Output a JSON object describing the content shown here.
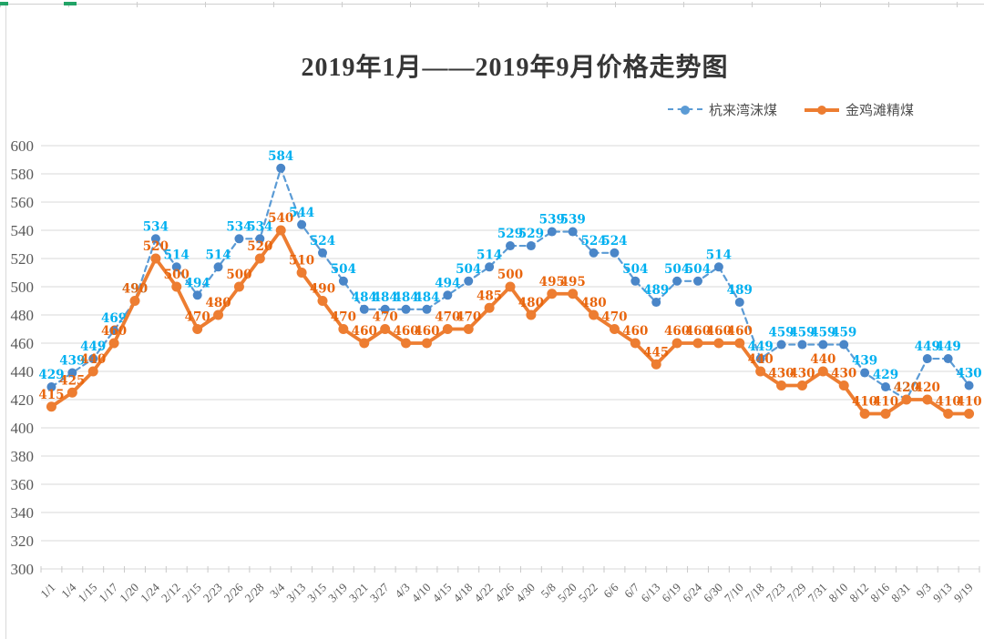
{
  "title": "2019年1月——2019年9月价格走势图",
  "legend": {
    "items": [
      {
        "label": "杭来湾沫煤"
      },
      {
        "label": "金鸡滩精煤"
      }
    ]
  },
  "chart_data": {
    "type": "line",
    "title": "2019年1月——2019年9月价格走势图",
    "categories": [
      "1/1",
      "1/4",
      "1/15",
      "1/17",
      "1/20",
      "1/24",
      "2/12",
      "2/15",
      "2/23",
      "2/26",
      "2/28",
      "3/4",
      "3/13",
      "3/15",
      "3/19",
      "3/21",
      "3/27",
      "4/3",
      "4/10",
      "4/15",
      "4/18",
      "4/22",
      "4/26",
      "4/30",
      "5/8",
      "5/20",
      "5/22",
      "6/6",
      "6/7",
      "6/13",
      "6/19",
      "6/24",
      "6/30",
      "7/10",
      "7/18",
      "7/23",
      "7/29",
      "7/31",
      "8/10",
      "8/12",
      "8/16",
      "8/31",
      "9/3",
      "9/13",
      "9/19"
    ],
    "series": [
      {
        "name": "杭来湾沫煤",
        "style": "dashed",
        "line_color": "#5B9BD5",
        "marker_color": "#4A86C8",
        "label_color": "#00B0F0",
        "values": [
          429,
          439,
          449,
          469,
          490,
          534,
          514,
          494,
          514,
          534,
          534,
          584,
          544,
          524,
          504,
          484,
          484,
          484,
          484,
          494,
          504,
          514,
          529,
          529,
          539,
          539,
          524,
          524,
          504,
          489,
          504,
          504,
          514,
          489,
          449,
          459,
          459,
          459,
          459,
          439,
          429,
          420,
          449,
          449,
          430
        ]
      },
      {
        "name": "金鸡滩精煤",
        "style": "solid",
        "line_color": "#ED7D31",
        "marker_color": "#ED7D31",
        "label_color": "#E8650D",
        "values": [
          415,
          425,
          440,
          460,
          490,
          520,
          500,
          470,
          480,
          500,
          520,
          540,
          510,
          490,
          470,
          460,
          470,
          460,
          460,
          470,
          470,
          485,
          500,
          480,
          495,
          495,
          480,
          470,
          460,
          445,
          460,
          460,
          460,
          460,
          440,
          430,
          430,
          440,
          430,
          410,
          410,
          420,
          420,
          410,
          410
        ]
      }
    ],
    "y_axis": {
      "min": 300,
      "max": 600,
      "step": 20
    },
    "x_axis": {
      "label_rotation": -45
    },
    "grid": true,
    "data_labels": true,
    "legend_position": "top-right"
  }
}
